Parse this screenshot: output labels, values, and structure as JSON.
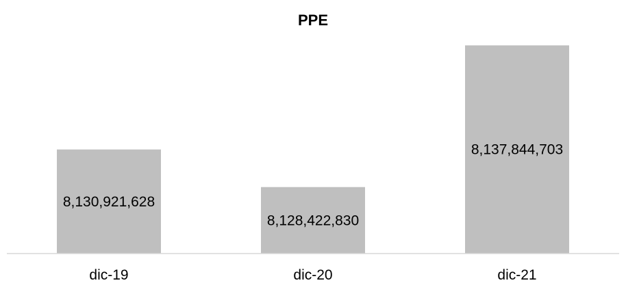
{
  "chart_data": {
    "type": "bar",
    "title": "PPE",
    "xlabel": "",
    "ylabel": "",
    "categories": [
      "dic-19",
      "dic-20",
      "dic-21"
    ],
    "values": [
      8130921628,
      8128422830,
      8137844703
    ],
    "data_labels": [
      "8,130,921,628",
      "8,128,422,830",
      "8,137,844,703"
    ],
    "ylim": [
      8124000000,
      8139500000
    ],
    "grid": false,
    "legend": "none",
    "bar_color": "#bfbfbf",
    "axis_color": "#d9d9d9"
  }
}
